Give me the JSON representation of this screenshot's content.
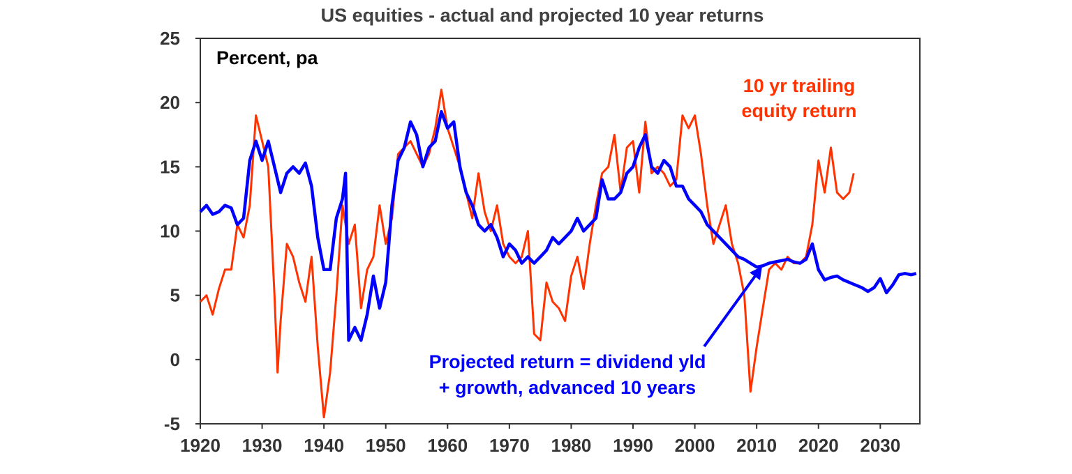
{
  "chart_data": {
    "type": "line",
    "title": "US equities - actual and projected 10 year returns",
    "ylabel": "Percent, pa",
    "xlabel": "",
    "xlim": [
      1920,
      2036.4
    ],
    "ylim": [
      -5,
      25
    ],
    "grid": false,
    "xticks": [
      "1920",
      "1930",
      "1940",
      "1950",
      "1960",
      "1970",
      "1980",
      "1990",
      "2000",
      "2010",
      "2020",
      "2030"
    ],
    "yticks": [
      "25",
      "20",
      "15",
      "10",
      "5",
      "0",
      "-5"
    ],
    "annotations": {
      "trailing_line1": "10 yr trailing",
      "trailing_line2": "equity return",
      "projected_line1": "Projected return = dividend yld",
      "projected_line2": "+ growth, advanced 10 years"
    },
    "series": [
      {
        "name": "10 yr trailing equity return",
        "color": "#ff3300",
        "x": [
          1920,
          1921,
          1922,
          1923,
          1924,
          1925,
          1926,
          1927,
          1928,
          1929,
          1930,
          1931,
          1932,
          1932.5,
          1933,
          1934,
          1935,
          1936,
          1937,
          1938,
          1939,
          1940,
          1941,
          1942,
          1943,
          1944,
          1945,
          1946,
          1947,
          1948,
          1949,
          1950,
          1951,
          1952,
          1953,
          1954,
          1955,
          1956,
          1957,
          1958,
          1959,
          1960,
          1961,
          1962,
          1963,
          1964,
          1965,
          1966,
          1967,
          1968,
          1969,
          1970,
          1971,
          1972,
          1973,
          1974,
          1975,
          1976,
          1977,
          1978,
          1979,
          1980,
          1981,
          1982,
          1983,
          1984,
          1985,
          1986,
          1987,
          1988,
          1989,
          1990,
          1991,
          1992,
          1993,
          1994,
          1995,
          1996,
          1997,
          1998,
          1999,
          2000,
          2001,
          2002,
          2003,
          2004,
          2005,
          2006,
          2007,
          2008,
          2009,
          2010,
          2011,
          2012,
          2013,
          2014,
          2015,
          2016,
          2017,
          2018,
          2019,
          2020,
          2021,
          2022,
          2023,
          2024,
          2025,
          2025.7
        ],
        "values": [
          4.5,
          5,
          3.5,
          5.5,
          7,
          7,
          10.5,
          9.5,
          12,
          19,
          17,
          15,
          5,
          -1,
          3,
          9,
          8,
          6,
          4.5,
          8,
          1,
          -4.5,
          -1,
          5,
          12,
          9,
          10.5,
          4,
          7,
          8,
          12,
          9,
          11,
          16,
          16.5,
          17,
          16,
          15,
          16,
          18,
          21,
          18,
          16.5,
          15,
          13,
          11,
          14.5,
          11.5,
          10,
          12,
          9,
          8,
          7.5,
          8,
          10,
          2,
          1.5,
          6,
          4.5,
          4,
          3,
          6.5,
          8,
          5.5,
          9,
          12,
          14.5,
          15,
          17.5,
          13,
          16.5,
          17,
          13,
          18.5,
          14.5,
          15,
          14.5,
          13.5,
          14,
          19,
          18,
          19,
          16,
          12,
          9,
          10.5,
          12,
          9,
          7.5,
          5,
          -2.5,
          1,
          4,
          7,
          7.5,
          7,
          8,
          7.5,
          7.5,
          8,
          10.5,
          15.5,
          13,
          16.5,
          13,
          12.5,
          13,
          14.5
        ]
      },
      {
        "name": "Projected return = dividend yld + growth, advanced 10 years",
        "color": "#0000ff",
        "x": [
          1920,
          1921,
          1922,
          1923,
          1924,
          1925,
          1926,
          1927,
          1928,
          1929,
          1930,
          1931,
          1932,
          1933,
          1934,
          1935,
          1936,
          1937,
          1938,
          1939,
          1940,
          1941,
          1942,
          1943,
          1943.5,
          1944,
          1945,
          1946,
          1947,
          1948,
          1949,
          1950,
          1951,
          1952,
          1953,
          1954,
          1955,
          1956,
          1957,
          1958,
          1959,
          1960,
          1961,
          1962,
          1963,
          1964,
          1965,
          1966,
          1967,
          1968,
          1969,
          1970,
          1971,
          1972,
          1973,
          1974,
          1975,
          1976,
          1977,
          1978,
          1979,
          1980,
          1981,
          1982,
          1983,
          1984,
          1985,
          1986,
          1987,
          1988,
          1989,
          1990,
          1991,
          1992,
          1993,
          1994,
          1995,
          1996,
          1997,
          1998,
          1999,
          2000,
          2001,
          2002,
          2003,
          2004,
          2005,
          2006,
          2007,
          2008,
          2009,
          2010,
          2011,
          2012,
          2013,
          2014,
          2015,
          2016,
          2017,
          2018,
          2019,
          2020,
          2021,
          2022,
          2023,
          2024,
          2025,
          2026,
          2027,
          2028,
          2029,
          2030,
          2031,
          2032,
          2033,
          2034,
          2035,
          2035.8
        ],
        "values": [
          11.5,
          12,
          11.3,
          11.5,
          12,
          11.8,
          10.5,
          11,
          15.5,
          17,
          15.5,
          17,
          15,
          13,
          14.5,
          15,
          14.5,
          15.3,
          13.5,
          9.5,
          7,
          7,
          11,
          12.5,
          14.5,
          1.5,
          2.5,
          1.5,
          3.5,
          6.5,
          4,
          6,
          12,
          15.5,
          16.5,
          18.5,
          17.5,
          15,
          16.5,
          17,
          19.3,
          18,
          18.5,
          15,
          13,
          12,
          10.5,
          10,
          10.5,
          9.5,
          8,
          9,
          8.5,
          7.5,
          8,
          7.5,
          8,
          8.5,
          9.5,
          9,
          9.5,
          10,
          11,
          10,
          10.5,
          11,
          14,
          12.5,
          12.5,
          13,
          14.5,
          15,
          16.5,
          17.5,
          15,
          14.5,
          15.5,
          15,
          13.5,
          13.5,
          12.5,
          12,
          11.5,
          10.5,
          10,
          9.5,
          9,
          8.5,
          8,
          7.8,
          7.5,
          7.2,
          7.3,
          7.5,
          7.6,
          7.7,
          7.8,
          7.6,
          7.5,
          7.8,
          9,
          7,
          6.2,
          6.4,
          6.5,
          6.2,
          6,
          5.8,
          5.6,
          5.3,
          5.6,
          6.3,
          5.2,
          5.8,
          6.6,
          6.7,
          6.6,
          6.7
        ]
      }
    ]
  }
}
